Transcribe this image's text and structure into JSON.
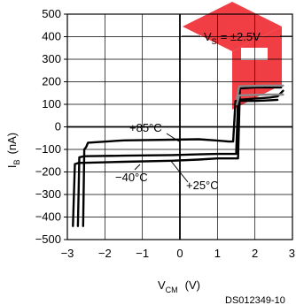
{
  "chart_data": {
    "type": "line",
    "xlabel": "V",
    "xlabel_sub": "CM",
    "xlabel_unit": "(V)",
    "ylabel": "I",
    "ylabel_sub": "B",
    "ylabel_unit": "(nA)",
    "xlim": [
      -3,
      3
    ],
    "ylim": [
      -500,
      500
    ],
    "x_ticks": [
      -3,
      -2,
      -1,
      0,
      1,
      2,
      3
    ],
    "x_tick_labels": [
      "−3",
      "−2",
      "−1",
      "0",
      "1",
      "2",
      "3"
    ],
    "y_ticks": [
      500,
      400,
      300,
      200,
      100,
      0,
      -100,
      -200,
      -300,
      -400,
      -500
    ],
    "y_tick_labels": [
      "500",
      "400",
      "300",
      "200",
      "100",
      "0",
      "−100",
      "−200",
      "−300",
      "−400",
      "−500"
    ],
    "grid": true,
    "annotations": {
      "vs": "V",
      "vs_sub": "S",
      "vs_value": "= ±2.5V",
      "t85": "+85°C",
      "tm40": "−40°C",
      "t25": "+25°C"
    },
    "doc_id": "DS012349-10",
    "watermark_color": "#ee1c25",
    "series": [
      {
        "color": "#000000",
        "x": [
          -2.85,
          -2.8,
          -2.7,
          -1.5,
          -0.2,
          0.5,
          1.0,
          1.4,
          1.55,
          1.6,
          2.0,
          2.4,
          2.7
        ],
        "y": [
          -440,
          -165,
          -160,
          -155,
          -150,
          -145,
          -140,
          -140,
          -140,
          170,
          175,
          175,
          175
        ]
      },
      {
        "color": "#000000",
        "x": [
          -2.72,
          -2.68,
          -2.55,
          -1.5,
          -0.2,
          0.5,
          1.0,
          1.4,
          1.5,
          1.55,
          2.0,
          2.4,
          2.6,
          2.75
        ],
        "y": [
          -440,
          -135,
          -130,
          -128,
          -125,
          -122,
          -120,
          -120,
          -120,
          120,
          125,
          130,
          135,
          160
        ]
      },
      {
        "color": "#000000",
        "x": [
          -2.58,
          -2.55,
          -2.5,
          -2.45,
          -1.5,
          -0.2,
          0.5,
          0.95,
          1.3,
          1.42,
          1.48,
          2.0,
          2.4,
          2.6
        ],
        "y": [
          -440,
          -100,
          -90,
          -70,
          -60,
          -57,
          -55,
          -60,
          -65,
          -65,
          115,
          115,
          118,
          120
        ]
      },
      {
        "color": "#8a8a8a",
        "x": [
          1.52,
          1.58,
          2.0,
          2.4,
          2.75
        ],
        "y": [
          125,
          180,
          182,
          183,
          183
        ]
      },
      {
        "color": "#8a8a8a",
        "x": [
          1.52,
          1.58,
          2.0,
          2.4,
          2.75
        ],
        "y": [
          100,
          140,
          142,
          143,
          143
        ]
      }
    ]
  }
}
